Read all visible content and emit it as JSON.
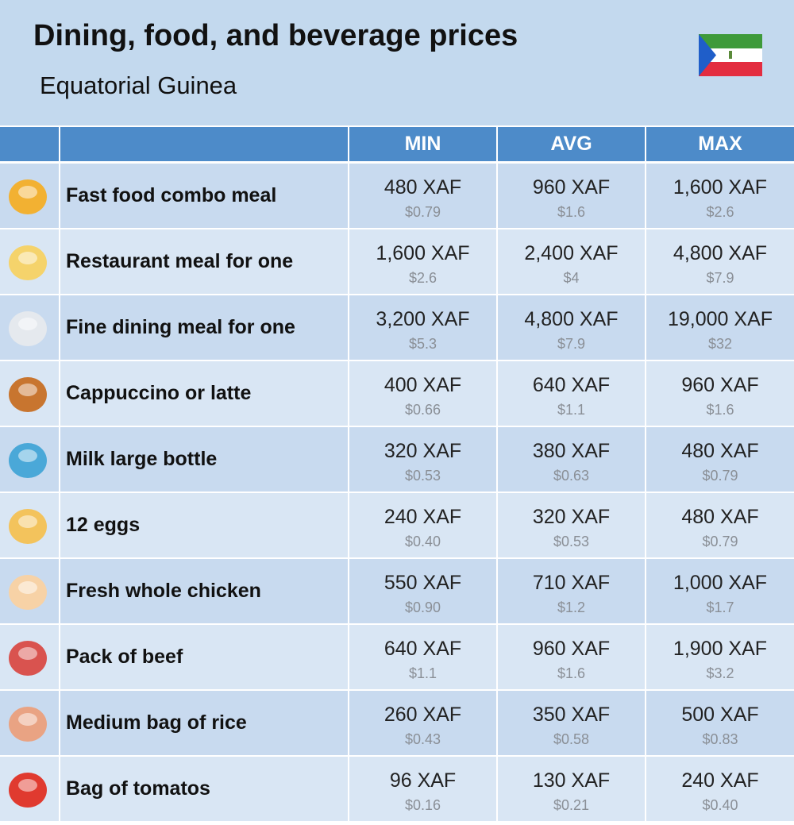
{
  "header": {
    "title": "Dining, food, and beverage prices",
    "subtitle": "Equatorial Guinea"
  },
  "table": {
    "columns": [
      "MIN",
      "AVG",
      "MAX"
    ],
    "rows": [
      {
        "name": "Fast food combo meal",
        "values": [
          [
            "480 XAF",
            "$0.79"
          ],
          [
            "960 XAF",
            "$1.6"
          ],
          [
            "1,600 XAF",
            "$2.6"
          ]
        ]
      },
      {
        "name": "Restaurant meal for one",
        "values": [
          [
            "1,600 XAF",
            "$2.6"
          ],
          [
            "2,400 XAF",
            "$4"
          ],
          [
            "4,800 XAF",
            "$7.9"
          ]
        ]
      },
      {
        "name": "Fine dining meal for one",
        "values": [
          [
            "3,200 XAF",
            "$5.3"
          ],
          [
            "4,800 XAF",
            "$7.9"
          ],
          [
            "19,000 XAF",
            "$32"
          ]
        ]
      },
      {
        "name": "Cappuccino or latte",
        "values": [
          [
            "400 XAF",
            "$0.66"
          ],
          [
            "640 XAF",
            "$1.1"
          ],
          [
            "960 XAF",
            "$1.6"
          ]
        ]
      },
      {
        "name": "Milk large bottle",
        "values": [
          [
            "320 XAF",
            "$0.53"
          ],
          [
            "380 XAF",
            "$0.63"
          ],
          [
            "480 XAF",
            "$0.79"
          ]
        ]
      },
      {
        "name": "12 eggs",
        "values": [
          [
            "240 XAF",
            "$0.40"
          ],
          [
            "320 XAF",
            "$0.53"
          ],
          [
            "480 XAF",
            "$0.79"
          ]
        ]
      },
      {
        "name": "Fresh whole chicken",
        "values": [
          [
            "550 XAF",
            "$0.90"
          ],
          [
            "710 XAF",
            "$1.2"
          ],
          [
            "1,000 XAF",
            "$1.7"
          ]
        ]
      },
      {
        "name": "Pack of beef",
        "values": [
          [
            "640 XAF",
            "$1.1"
          ],
          [
            "960 XAF",
            "$1.6"
          ],
          [
            "1,900 XAF",
            "$3.2"
          ]
        ]
      },
      {
        "name": "Medium bag of rice",
        "values": [
          [
            "260 XAF",
            "$0.43"
          ],
          [
            "350 XAF",
            "$0.58"
          ],
          [
            "500 XAF",
            "$0.83"
          ]
        ]
      },
      {
        "name": "Bag of tomatos",
        "values": [
          [
            "96 XAF",
            "$0.16"
          ],
          [
            "130 XAF",
            "$0.21"
          ],
          [
            "240 XAF",
            "$0.40"
          ]
        ]
      }
    ]
  }
}
